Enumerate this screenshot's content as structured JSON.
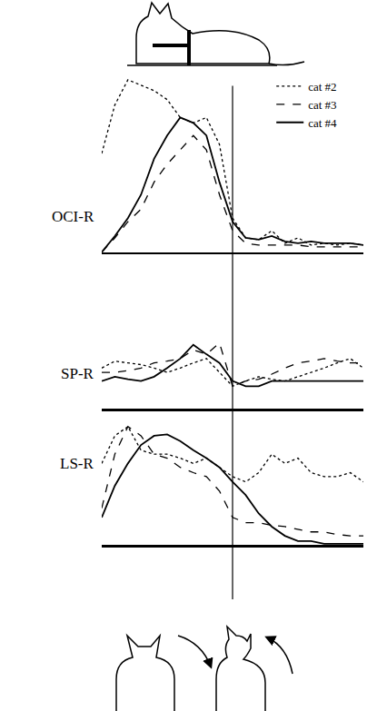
{
  "chart_data": {
    "type": "line",
    "x": [
      0,
      2,
      4,
      6,
      8,
      10,
      12,
      14,
      16,
      18,
      20,
      22,
      24,
      26,
      28,
      30,
      32,
      34,
      36,
      38,
      40
    ],
    "xlim": [
      0,
      40
    ],
    "vline": 20,
    "tick_labels": false,
    "grid": false,
    "legend": "top right",
    "panels": [
      {
        "name": "OCI-R",
        "ylim": [
          0,
          100
        ],
        "series": [
          {
            "name": "cat #2",
            "color": "#000000",
            "line_style": "dotted",
            "values": [
              55,
              82,
              96,
              93,
              90,
              85,
              75,
              72,
              75,
              60,
              19,
              8,
              7,
              12,
              5,
              8,
              4,
              5,
              4,
              5,
              4
            ]
          },
          {
            "name": "cat #3",
            "color": "#000000",
            "line_style": "dashed",
            "values": [
              0,
              8,
              17,
              24,
              39,
              49,
              57,
              65,
              57,
              32,
              12,
              5,
              4,
              4,
              4,
              4,
              3,
              3,
              3,
              3,
              3
            ]
          },
          {
            "name": "cat #4",
            "color": "#000000",
            "line_style": "solid",
            "values": [
              0,
              9,
              19,
              32,
              52,
              65,
              75,
              72,
              65,
              39,
              17,
              8,
              7,
              9,
              6,
              5,
              6,
              5,
              5,
              5,
              4
            ]
          }
        ]
      },
      {
        "name": "SP-R",
        "ylim": [
          0,
          100
        ],
        "series": [
          {
            "name": "cat #2",
            "color": "#000000",
            "line_style": "dotted",
            "values": [
              47,
              55,
              53,
              51,
              47,
              42,
              47,
              53,
              58,
              42,
              26,
              32,
              37,
              34,
              32,
              37,
              42,
              47,
              53,
              58,
              47
            ]
          },
          {
            "name": "cat #3",
            "color": "#000000",
            "line_style": "dashed",
            "values": [
              42,
              42,
              44,
              47,
              53,
              55,
              58,
              68,
              63,
              76,
              26,
              32,
              34,
              40,
              47,
              53,
              55,
              58,
              55,
              53,
              53
            ]
          },
          {
            "name": "cat #4",
            "color": "#000000",
            "line_style": "solid",
            "values": [
              32,
              37,
              34,
              32,
              37,
              47,
              58,
              74,
              63,
              53,
              32,
              26,
              26,
              32,
              32,
              32,
              32,
              32,
              32,
              32,
              32
            ]
          }
        ]
      },
      {
        "name": "LS-R",
        "ylim": [
          0,
          100
        ],
        "series": [
          {
            "name": "cat #2",
            "color": "#000000",
            "line_style": "dotted",
            "values": [
              62,
              83,
              90,
              72,
              69,
              69,
              66,
              62,
              66,
              59,
              52,
              48,
              55,
              69,
              62,
              66,
              55,
              52,
              52,
              55,
              48
            ]
          },
          {
            "name": "cat #3",
            "color": "#000000",
            "line_style": "dashed",
            "values": [
              28,
              69,
              90,
              83,
              69,
              66,
              59,
              55,
              52,
              41,
              21,
              17,
              17,
              15,
              14,
              12,
              10,
              10,
              8,
              7,
              7
            ]
          },
          {
            "name": "cat #4",
            "color": "#000000",
            "line_style": "solid",
            "values": [
              21,
              45,
              62,
              76,
              83,
              84,
              79,
              72,
              66,
              59,
              48,
              38,
              24,
              14,
              7,
              3,
              3,
              1,
              1,
              1,
              1
            ]
          }
        ]
      }
    ]
  }
}
